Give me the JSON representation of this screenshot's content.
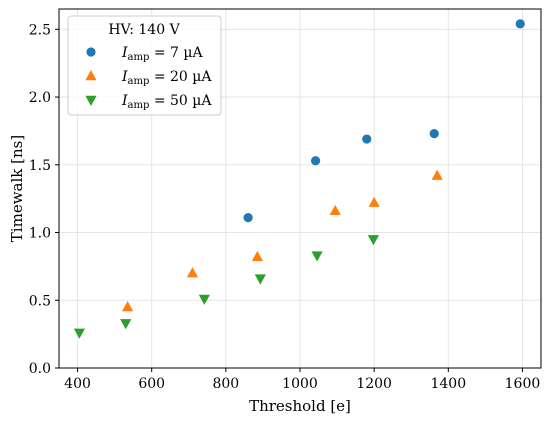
{
  "chart_data": {
    "type": "scatter",
    "xlabel": "Threshold [e]",
    "ylabel": "Timewalk [ns]",
    "xlim": [
      350,
      1650
    ],
    "ylim": [
      0,
      2.65
    ],
    "xticks": [
      400,
      600,
      800,
      1000,
      1200,
      1400,
      1600
    ],
    "yticks": [
      0.0,
      0.5,
      1.0,
      1.5,
      2.0,
      2.5
    ],
    "xtick_labels": [
      "400",
      "600",
      "800",
      "1000",
      "1200",
      "1400",
      "1600"
    ],
    "ytick_labels": [
      "0.0",
      "0.5",
      "1.0",
      "1.5",
      "2.0",
      "2.5"
    ],
    "grid": true,
    "legend": {
      "title": "HV: 140 V",
      "placement": "top-left"
    },
    "series": [
      {
        "name": "I_amp = 7 µA",
        "label_main": "I",
        "label_sub": "amp",
        "label_rest": " = 7 µA",
        "marker": "circle",
        "color": "#1f77b4",
        "x": [
          860,
          1042,
          1180,
          1362,
          1594
        ],
        "y": [
          1.11,
          1.53,
          1.69,
          1.73,
          2.54
        ]
      },
      {
        "name": "I_amp = 20 µA",
        "label_main": "I",
        "label_sub": "amp",
        "label_rest": " = 20 µA",
        "marker": "triangle-up",
        "color": "#ff7f0e",
        "x": [
          535,
          710,
          885,
          1095,
          1200,
          1370
        ],
        "y": [
          0.45,
          0.7,
          0.82,
          1.16,
          1.22,
          1.42
        ]
      },
      {
        "name": "I_amp = 50 µA",
        "label_main": "I",
        "label_sub": "amp",
        "label_rest": " = 50 µA",
        "marker": "triangle-down",
        "color": "#2ca02c",
        "x": [
          405,
          530,
          742,
          893,
          1046,
          1198
        ],
        "y": [
          0.26,
          0.33,
          0.51,
          0.66,
          0.83,
          0.95
        ]
      }
    ]
  }
}
